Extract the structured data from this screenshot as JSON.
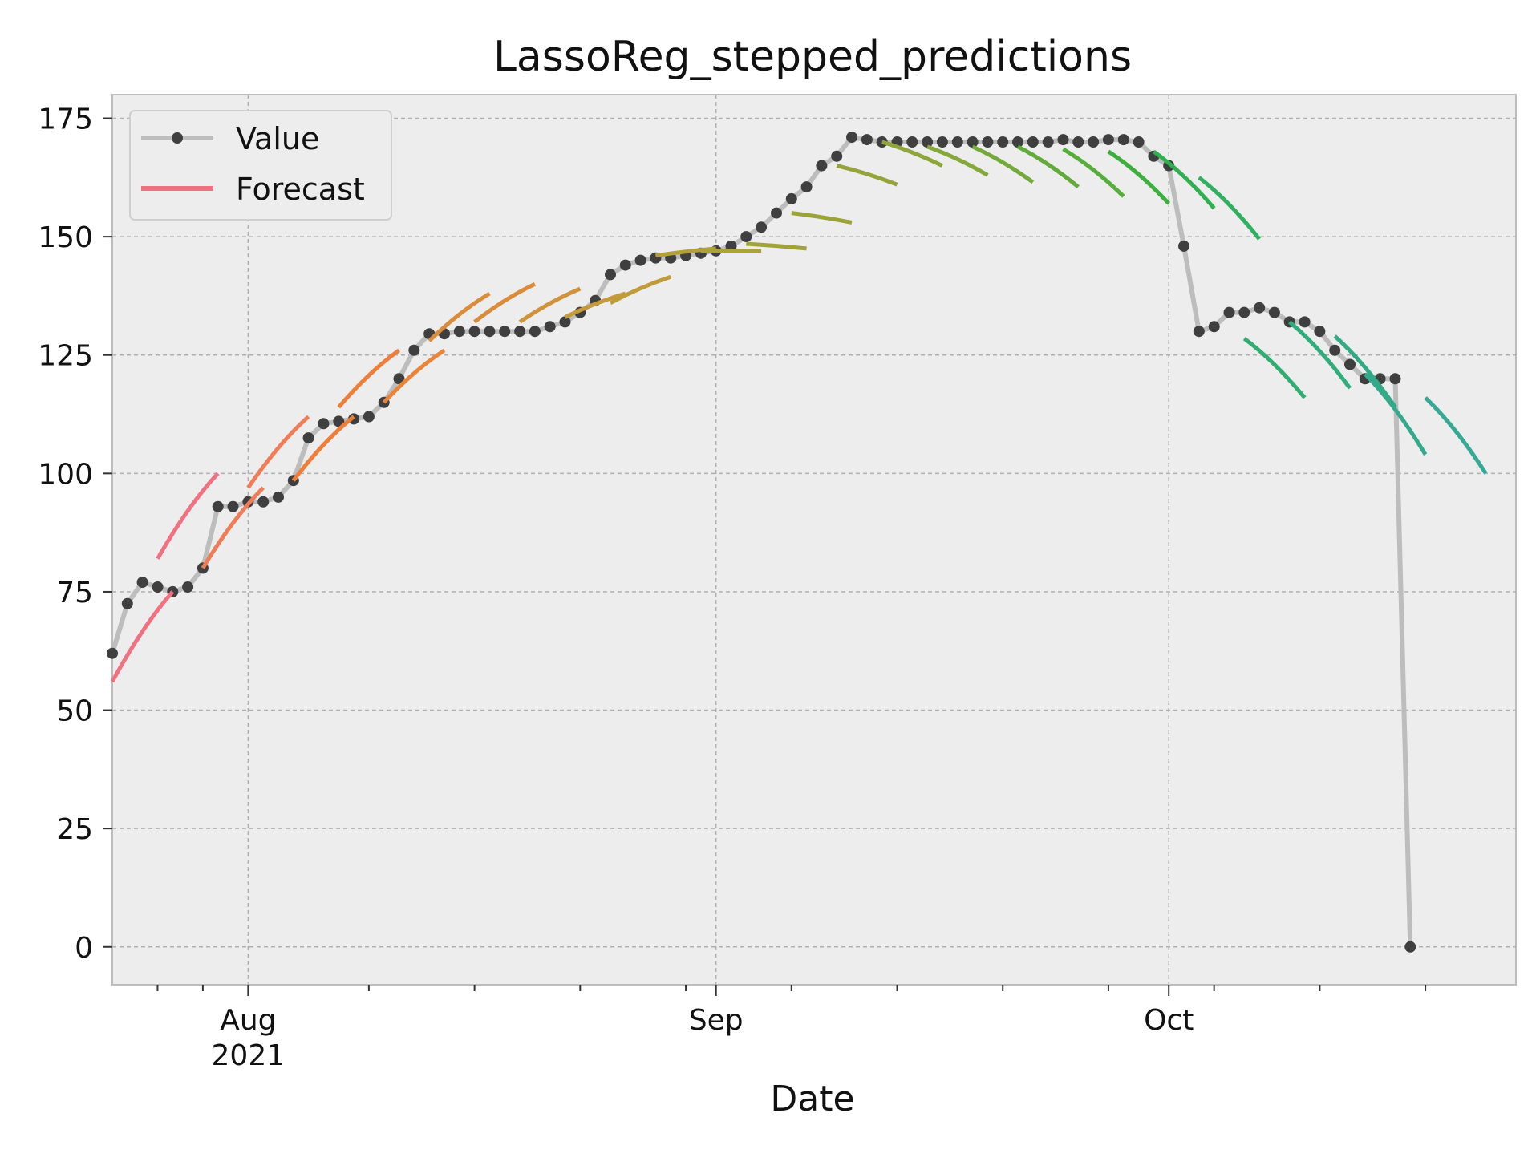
{
  "chart_data": {
    "type": "line",
    "title": "LassoReg_stepped_predictions",
    "xlabel": "Date",
    "ylabel": "",
    "x_range": [
      "2021-07-23",
      "2021-10-24"
    ],
    "ylim": [
      -8,
      180
    ],
    "yticks": [
      0,
      25,
      50,
      75,
      100,
      125,
      150,
      175
    ],
    "xticks": [
      {
        "date": "2021-08-01",
        "label": "Aug",
        "sublabel": "2021"
      },
      {
        "date": "2021-09-01",
        "label": "Sep",
        "sublabel": ""
      },
      {
        "date": "2021-10-01",
        "label": "Oct",
        "sublabel": ""
      }
    ],
    "minor_xticks": [
      "2021-07-26",
      "2021-07-29",
      "2021-08-09",
      "2021-08-16",
      "2021-08-23",
      "2021-08-30",
      "2021-09-06",
      "2021-09-13",
      "2021-09-20",
      "2021-09-27",
      "2021-10-04",
      "2021-10-11",
      "2021-10-18"
    ],
    "grid": true,
    "legend": {
      "position": "top-left",
      "entries": [
        {
          "label": "Value",
          "color": "#bdbdbd"
        },
        {
          "label": "Forecast",
          "color": "#f07182"
        }
      ]
    },
    "colors": {
      "background": "#ededed",
      "value_line": "#bdbdbd",
      "marker": "#3f3f3f"
    },
    "series": [
      {
        "name": "Value",
        "points": [
          [
            "2021-07-23",
            62
          ],
          [
            "2021-07-24",
            72.5
          ],
          [
            "2021-07-25",
            77
          ],
          [
            "2021-07-26",
            76
          ],
          [
            "2021-07-27",
            75
          ],
          [
            "2021-07-28",
            76
          ],
          [
            "2021-07-29",
            80
          ],
          [
            "2021-07-30",
            93
          ],
          [
            "2021-07-31",
            93
          ],
          [
            "2021-08-01",
            94
          ],
          [
            "2021-08-02",
            94
          ],
          [
            "2021-08-03",
            95
          ],
          [
            "2021-08-04",
            98.5
          ],
          [
            "2021-08-05",
            107.5
          ],
          [
            "2021-08-06",
            110.5
          ],
          [
            "2021-08-07",
            111
          ],
          [
            "2021-08-08",
            111.5
          ],
          [
            "2021-08-09",
            112
          ],
          [
            "2021-08-10",
            115
          ],
          [
            "2021-08-11",
            120
          ],
          [
            "2021-08-12",
            126
          ],
          [
            "2021-08-13",
            129.5
          ],
          [
            "2021-08-14",
            129.5
          ],
          [
            "2021-08-15",
            130
          ],
          [
            "2021-08-16",
            130
          ],
          [
            "2021-08-17",
            130
          ],
          [
            "2021-08-18",
            130
          ],
          [
            "2021-08-19",
            130
          ],
          [
            "2021-08-20",
            130
          ],
          [
            "2021-08-21",
            131
          ],
          [
            "2021-08-22",
            132
          ],
          [
            "2021-08-23",
            134
          ],
          [
            "2021-08-24",
            136.5
          ],
          [
            "2021-08-25",
            142
          ],
          [
            "2021-08-26",
            144
          ],
          [
            "2021-08-27",
            145
          ],
          [
            "2021-08-28",
            145.5
          ],
          [
            "2021-08-29",
            145.5
          ],
          [
            "2021-08-30",
            146
          ],
          [
            "2021-08-31",
            146.5
          ],
          [
            "2021-09-01",
            147
          ],
          [
            "2021-09-02",
            148
          ],
          [
            "2021-09-03",
            150
          ],
          [
            "2021-09-04",
            152
          ],
          [
            "2021-09-05",
            155
          ],
          [
            "2021-09-06",
            158
          ],
          [
            "2021-09-07",
            160.5
          ],
          [
            "2021-09-08",
            165
          ],
          [
            "2021-09-09",
            167
          ],
          [
            "2021-09-10",
            171
          ],
          [
            "2021-09-11",
            170.5
          ],
          [
            "2021-09-12",
            170
          ],
          [
            "2021-09-13",
            170
          ],
          [
            "2021-09-14",
            170
          ],
          [
            "2021-09-15",
            170
          ],
          [
            "2021-09-16",
            170
          ],
          [
            "2021-09-17",
            170
          ],
          [
            "2021-09-18",
            170
          ],
          [
            "2021-09-19",
            170
          ],
          [
            "2021-09-20",
            170
          ],
          [
            "2021-09-21",
            170
          ],
          [
            "2021-09-22",
            170
          ],
          [
            "2021-09-23",
            170
          ],
          [
            "2021-09-24",
            170.5
          ],
          [
            "2021-09-25",
            170
          ],
          [
            "2021-09-26",
            170
          ],
          [
            "2021-09-27",
            170.5
          ],
          [
            "2021-09-28",
            170.5
          ],
          [
            "2021-09-29",
            170
          ],
          [
            "2021-09-30",
            167
          ],
          [
            "2021-10-01",
            165
          ],
          [
            "2021-10-02",
            148
          ],
          [
            "2021-10-03",
            130
          ],
          [
            "2021-10-04",
            131
          ],
          [
            "2021-10-05",
            134
          ],
          [
            "2021-10-06",
            134
          ],
          [
            "2021-10-07",
            135
          ],
          [
            "2021-10-08",
            134
          ],
          [
            "2021-10-09",
            132
          ],
          [
            "2021-10-10",
            132
          ],
          [
            "2021-10-11",
            130
          ],
          [
            "2021-10-12",
            126
          ],
          [
            "2021-10-13",
            123
          ],
          [
            "2021-10-14",
            120
          ],
          [
            "2021-10-15",
            120
          ],
          [
            "2021-10-16",
            120
          ],
          [
            "2021-10-17",
            0
          ]
        ]
      },
      {
        "name": "Forecast",
        "segments": [
          {
            "color": "#f07182",
            "start": "2021-07-23",
            "end": "2021-07-27",
            "y0": 56,
            "y1": 75
          },
          {
            "color": "#f07182",
            "start": "2021-07-26",
            "end": "2021-07-30",
            "y0": 82,
            "y1": 100
          },
          {
            "color": "#f07d57",
            "start": "2021-07-29",
            "end": "2021-08-02",
            "y0": 80,
            "y1": 97
          },
          {
            "color": "#f07d57",
            "start": "2021-08-01",
            "end": "2021-08-05",
            "y0": 97,
            "y1": 112
          },
          {
            "color": "#ee7f3a",
            "start": "2021-08-04",
            "end": "2021-08-08",
            "y0": 98.5,
            "y1": 112
          },
          {
            "color": "#ee7f3a",
            "start": "2021-08-07",
            "end": "2021-08-11",
            "y0": 114,
            "y1": 126
          },
          {
            "color": "#e8853a",
            "start": "2021-08-10",
            "end": "2021-08-14",
            "y0": 115,
            "y1": 126
          },
          {
            "color": "#d98d3a",
            "start": "2021-08-13",
            "end": "2021-08-17",
            "y0": 128,
            "y1": 138
          },
          {
            "color": "#d98d3a",
            "start": "2021-08-16",
            "end": "2021-08-20",
            "y0": 132,
            "y1": 140
          },
          {
            "color": "#d0923a",
            "start": "2021-08-19",
            "end": "2021-08-23",
            "y0": 132,
            "y1": 139
          },
          {
            "color": "#c59a3a",
            "start": "2021-08-22",
            "end": "2021-08-26",
            "y0": 133,
            "y1": 138
          },
          {
            "color": "#bf9c3a",
            "start": "2021-08-25",
            "end": "2021-08-29",
            "y0": 136,
            "y1": 141.5
          },
          {
            "color": "#b4a03a",
            "start": "2021-08-28",
            "end": "2021-09-01",
            "y0": 146,
            "y1": 147.5
          },
          {
            "color": "#aaa23a",
            "start": "2021-08-31",
            "end": "2021-09-04",
            "y0": 147,
            "y1": 147
          },
          {
            "color": "#a2a23a",
            "start": "2021-09-03",
            "end": "2021-09-07",
            "y0": 148.5,
            "y1": 147.5
          },
          {
            "color": "#9ca23a",
            "start": "2021-09-06",
            "end": "2021-09-10",
            "y0": 155,
            "y1": 153
          },
          {
            "color": "#96a23a",
            "start": "2021-09-09",
            "end": "2021-09-13",
            "y0": 165,
            "y1": 161
          },
          {
            "color": "#8ea53a",
            "start": "2021-09-12",
            "end": "2021-09-16",
            "y0": 170,
            "y1": 165
          },
          {
            "color": "#84a83a",
            "start": "2021-09-15",
            "end": "2021-09-19",
            "y0": 169,
            "y1": 163
          },
          {
            "color": "#74aa3a",
            "start": "2021-09-18",
            "end": "2021-09-22",
            "y0": 169,
            "y1": 161.5
          },
          {
            "color": "#62ab3a",
            "start": "2021-09-21",
            "end": "2021-09-25",
            "y0": 169,
            "y1": 160.5
          },
          {
            "color": "#55ad3a",
            "start": "2021-09-24",
            "end": "2021-09-28",
            "y0": 168.5,
            "y1": 158.5
          },
          {
            "color": "#3caf3c",
            "start": "2021-09-27",
            "end": "2021-10-01",
            "y0": 168,
            "y1": 157
          },
          {
            "color": "#2fb04f",
            "start": "2021-09-30",
            "end": "2021-10-04",
            "y0": 168,
            "y1": 156
          },
          {
            "color": "#2fb060",
            "start": "2021-10-03",
            "end": "2021-10-07",
            "y0": 162.5,
            "y1": 149.5
          },
          {
            "color": "#31ad72",
            "start": "2021-10-06",
            "end": "2021-10-10",
            "y0": 128.5,
            "y1": 116
          },
          {
            "color": "#31ad7c",
            "start": "2021-10-09",
            "end": "2021-10-13",
            "y0": 132,
            "y1": 118
          },
          {
            "color": "#32ab84",
            "start": "2021-10-12",
            "end": "2021-10-16",
            "y0": 129,
            "y1": 114
          },
          {
            "color": "#33aa8c",
            "start": "2021-10-14",
            "end": "2021-10-18",
            "y0": 121,
            "y1": 104
          },
          {
            "color": "#35a994",
            "start": "2021-10-18",
            "end": "2021-10-22",
            "y0": 116,
            "y1": 100
          }
        ]
      }
    ]
  }
}
